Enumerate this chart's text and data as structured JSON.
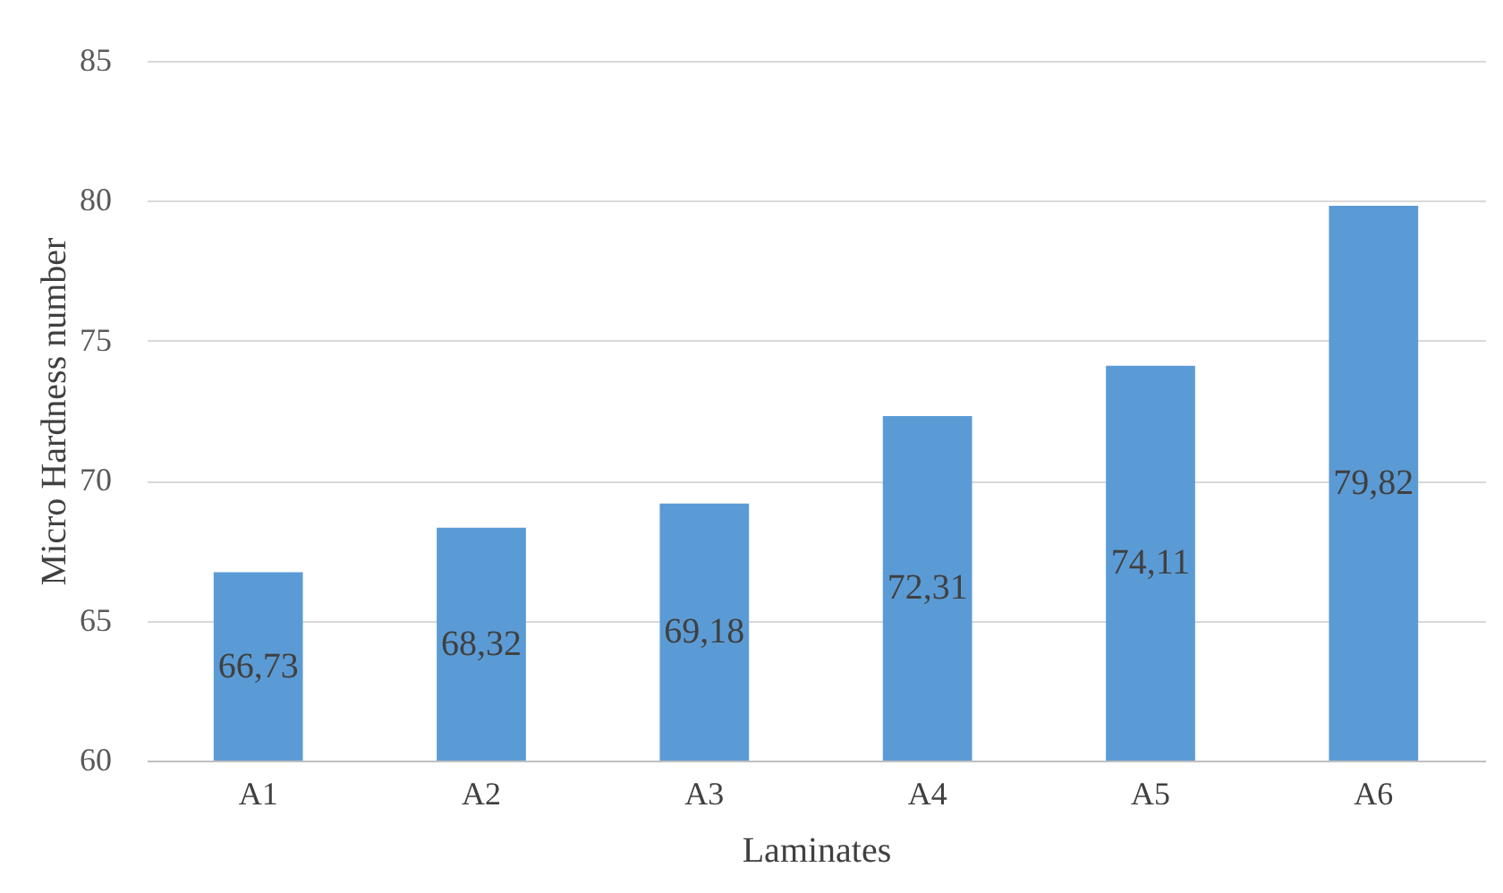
{
  "chart_data": {
    "type": "bar",
    "xlabel": "Laminates",
    "ylabel": "Micro Hardness number",
    "categories": [
      "A1",
      "A2",
      "A3",
      "A4",
      "A5",
      "A6"
    ],
    "series": [
      {
        "color": "#5b9bd5",
        "values": [
          66.73,
          68.32,
          69.18,
          72.31,
          74.11,
          79.82
        ]
      }
    ],
    "value_labels": [
      "66,73",
      "68,32",
      "69,18",
      "72,31",
      "74,11",
      "79,82"
    ],
    "ylim": [
      60,
      85
    ],
    "yticks": [
      60,
      65,
      70,
      75,
      80,
      85
    ],
    "grid": "y"
  }
}
